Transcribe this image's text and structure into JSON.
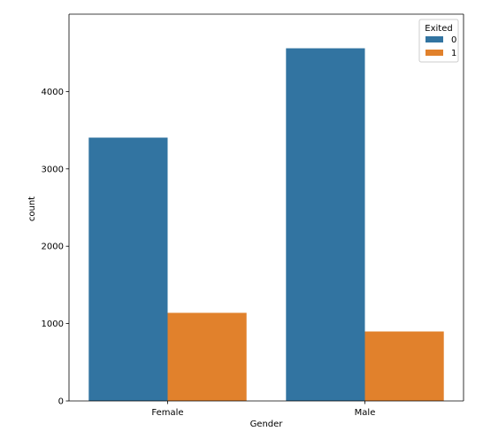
{
  "chart_data": {
    "type": "bar",
    "title": "",
    "xlabel": "Gender",
    "ylabel": "count",
    "categories": [
      "Female",
      "Male"
    ],
    "ylim": [
      0,
      5000
    ],
    "yticks": [
      0,
      1000,
      2000,
      3000,
      4000
    ],
    "grid": false,
    "legend": {
      "title": "Exited",
      "position": "top-right"
    },
    "series": [
      {
        "name": "0",
        "values": [
          3404,
          4559
        ],
        "color": "#3274a1"
      },
      {
        "name": "1",
        "values": [
          1139,
          898
        ],
        "color": "#e1812c"
      }
    ]
  }
}
